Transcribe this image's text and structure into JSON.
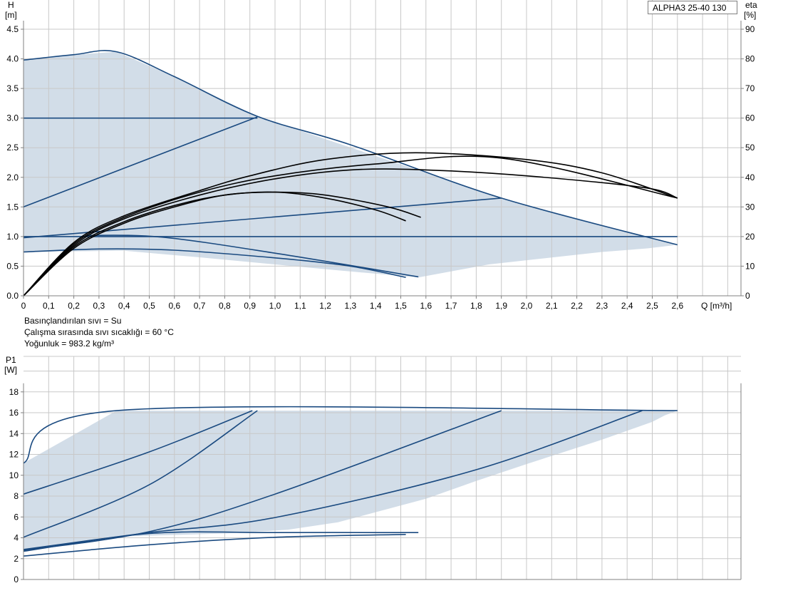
{
  "colors": {
    "area_fill": "#d2dde8",
    "curve_blue": "#1a4a80",
    "eta_black": "#000000",
    "grid": "#c8c8c8",
    "axis": "#808080"
  },
  "model_label": "ALPHA3 25-40 130",
  "fluid_info": {
    "line1": "Basınçlandırılan sıvı = Su",
    "line2": "Çalışma sırasında sıvı sıcaklığı = 60 °C",
    "line3": "Yoğunluk = 983.2 kg/m³"
  },
  "chart_data": [
    {
      "type": "line",
      "id": "head_efficiency",
      "title": "",
      "xlabel": "Q [m³/h]",
      "ylabel": "H\n[m]",
      "y2label": "eta\n[%]",
      "xlim": [
        0,
        2.75
      ],
      "ylim": [
        0,
        4.5
      ],
      "y2lim": [
        0,
        90
      ],
      "grid": true,
      "x_ticks": [
        "0",
        "0,1",
        "0,2",
        "0,3",
        "0,4",
        "0,5",
        "0,6",
        "0,7",
        "0,8",
        "0,9",
        "1,0",
        "1,1",
        "1,2",
        "1,3",
        "1,4",
        "1,5",
        "1,6",
        "1,7",
        "1,8",
        "1,9",
        "2,0",
        "2,1",
        "2,2",
        "2,3",
        "2,4",
        "2,5",
        "2,6"
      ],
      "y_ticks": [
        "0.0",
        "0.5",
        "1.0",
        "1.5",
        "2.0",
        "2.5",
        "3.0",
        "3.5",
        "4.0",
        "4.5"
      ],
      "y2_ticks": [
        "0",
        "10",
        "20",
        "30",
        "40",
        "50",
        "60",
        "70",
        "80",
        "90"
      ],
      "operating_area": [
        [
          0,
          3.98
        ],
        [
          0.2,
          4.07
        ],
        [
          0.37,
          4.12
        ],
        [
          0.6,
          3.7
        ],
        [
          0.93,
          3.03
        ],
        [
          1.9,
          1.65
        ],
        [
          2.6,
          0.86
        ],
        [
          2.48,
          0.8
        ],
        [
          2.3,
          0.74
        ],
        [
          2.0,
          0.6
        ],
        [
          1.85,
          0.53
        ],
        [
          1.57,
          0.31
        ],
        [
          1.25,
          0.43
        ],
        [
          1.0,
          0.53
        ],
        [
          0.7,
          0.65
        ],
        [
          0.4,
          0.76
        ],
        [
          0,
          0.74
        ]
      ],
      "series": [
        {
          "axis": "left",
          "points": [
            [
              0,
              3.98
            ],
            [
              0.2,
              4.07
            ],
            [
              0.37,
              4.12
            ],
            [
              0.6,
              3.7
            ],
            [
              0.93,
              3.03
            ],
            [
              1.3,
              2.55
            ],
            [
              1.9,
              1.65
            ],
            [
              2.6,
              0.86
            ]
          ]
        },
        {
          "axis": "left",
          "points": [
            [
              0,
              3.0
            ],
            [
              0.93,
              3.0
            ]
          ]
        },
        {
          "axis": "left",
          "points": [
            [
              0,
              1.5
            ],
            [
              0.93,
              3.02
            ]
          ]
        },
        {
          "axis": "left",
          "points": [
            [
              0,
              1.0
            ],
            [
              2.6,
              1.0
            ]
          ]
        },
        {
          "axis": "left",
          "points": [
            [
              0,
              0.98
            ],
            [
              1.9,
              1.65
            ]
          ]
        },
        {
          "axis": "left",
          "points": [
            [
              0.25,
              1.02
            ],
            [
              0.55,
              0.99
            ],
            [
              1.0,
              0.72
            ],
            [
              1.57,
              0.32
            ]
          ]
        },
        {
          "axis": "left",
          "points": [
            [
              0,
              0.74
            ],
            [
              0.3,
              0.79
            ],
            [
              0.6,
              0.77
            ],
            [
              1.0,
              0.64
            ],
            [
              1.3,
              0.5
            ],
            [
              1.52,
              0.31
            ]
          ]
        },
        {
          "axis": "right",
          "points": [
            [
              0,
              0
            ],
            [
              0.2,
              18
            ],
            [
              0.4,
              27
            ],
            [
              0.7,
              35.5
            ],
            [
              0.9,
              40.5
            ],
            [
              1.2,
              46
            ],
            [
              1.56,
              48.3
            ],
            [
              2.0,
              46
            ],
            [
              2.3,
              41.5
            ],
            [
              2.6,
              33
            ]
          ]
        },
        {
          "axis": "right",
          "points": [
            [
              0,
              0
            ],
            [
              0.2,
              17.5
            ],
            [
              0.4,
              26.5
            ],
            [
              0.7,
              35
            ],
            [
              1.0,
              40.5
            ],
            [
              1.4,
              44.5
            ],
            [
              1.9,
              46.5
            ],
            [
              2.6,
              33
            ]
          ]
        },
        {
          "axis": "right",
          "points": [
            [
              0,
              0
            ],
            [
              0.2,
              17
            ],
            [
              0.4,
              26
            ],
            [
              0.7,
              34
            ],
            [
              1.0,
              39.5
            ],
            [
              1.3,
              42.5
            ],
            [
              1.6,
              42.5
            ],
            [
              2.0,
              40.5
            ],
            [
              2.47,
              36.5
            ],
            [
              2.6,
              33
            ]
          ]
        },
        {
          "axis": "right",
          "points": [
            [
              0,
              0
            ],
            [
              0.2,
              16.5
            ],
            [
              0.4,
              25
            ],
            [
              0.6,
              30.5
            ],
            [
              0.8,
              34
            ],
            [
              1.0,
              35
            ],
            [
              1.2,
              33
            ],
            [
              1.4,
              29
            ],
            [
              1.52,
              25.3
            ]
          ]
        },
        {
          "axis": "right",
          "points": [
            [
              0,
              0
            ],
            [
              0.2,
              16
            ],
            [
              0.4,
              24.5
            ],
            [
              0.6,
              30
            ],
            [
              0.8,
              34
            ],
            [
              1.0,
              35
            ],
            [
              1.2,
              34
            ],
            [
              1.45,
              30
            ],
            [
              1.58,
              26.5
            ]
          ]
        }
      ]
    },
    {
      "type": "line",
      "id": "power",
      "title": "",
      "xlabel": "",
      "ylabel": "P1\n[W]",
      "xlim": [
        0,
        2.75
      ],
      "ylim": [
        0,
        20
      ],
      "grid": true,
      "y_ticks": [
        "0",
        "2",
        "4",
        "6",
        "8",
        "10",
        "12",
        "14",
        "16",
        "18"
      ],
      "operating_area": [
        [
          0,
          12.4
        ],
        [
          0.37,
          18
        ],
        [
          2.6,
          18
        ],
        [
          2.55,
          17.5
        ],
        [
          2.5,
          16.8
        ],
        [
          2.3,
          14.9
        ],
        [
          2.0,
          12.3
        ],
        [
          1.8,
          10.5
        ],
        [
          1.6,
          8.6
        ],
        [
          1.25,
          6.1
        ],
        [
          1.05,
          5.3
        ],
        [
          0.8,
          4.9
        ],
        [
          0.4,
          4.6
        ],
        [
          0,
          3.0
        ]
      ],
      "series": [
        {
          "points": [
            [
              0,
              12.4
            ],
            [
              0.37,
              18
            ],
            [
              2.6,
              18
            ]
          ]
        },
        {
          "points": [
            [
              0,
              9.1
            ],
            [
              0.5,
              13.6
            ],
            [
              0.91,
              18
            ]
          ]
        },
        {
          "points": [
            [
              0,
              4.5
            ],
            [
              0.5,
              10.1
            ],
            [
              0.93,
              18
            ]
          ]
        },
        {
          "points": [
            [
              0,
              3.1
            ],
            [
              0.5,
              5.1
            ],
            [
              1.0,
              9.1
            ],
            [
              1.9,
              18
            ]
          ]
        },
        {
          "points": [
            [
              0,
              3.2
            ],
            [
              0.5,
              5.0
            ],
            [
              1.0,
              6.6
            ],
            [
              1.8,
              11.7
            ],
            [
              2.46,
              18
            ]
          ]
        },
        {
          "points": [
            [
              0,
              3.0
            ],
            [
              0.5,
              4.9
            ],
            [
              1.0,
              5.0
            ],
            [
              1.57,
              5.0
            ]
          ]
        },
        {
          "points": [
            [
              0,
              2.5
            ],
            [
              0.5,
              3.7
            ],
            [
              1.0,
              4.5
            ],
            [
              1.52,
              4.8
            ]
          ]
        }
      ]
    }
  ]
}
